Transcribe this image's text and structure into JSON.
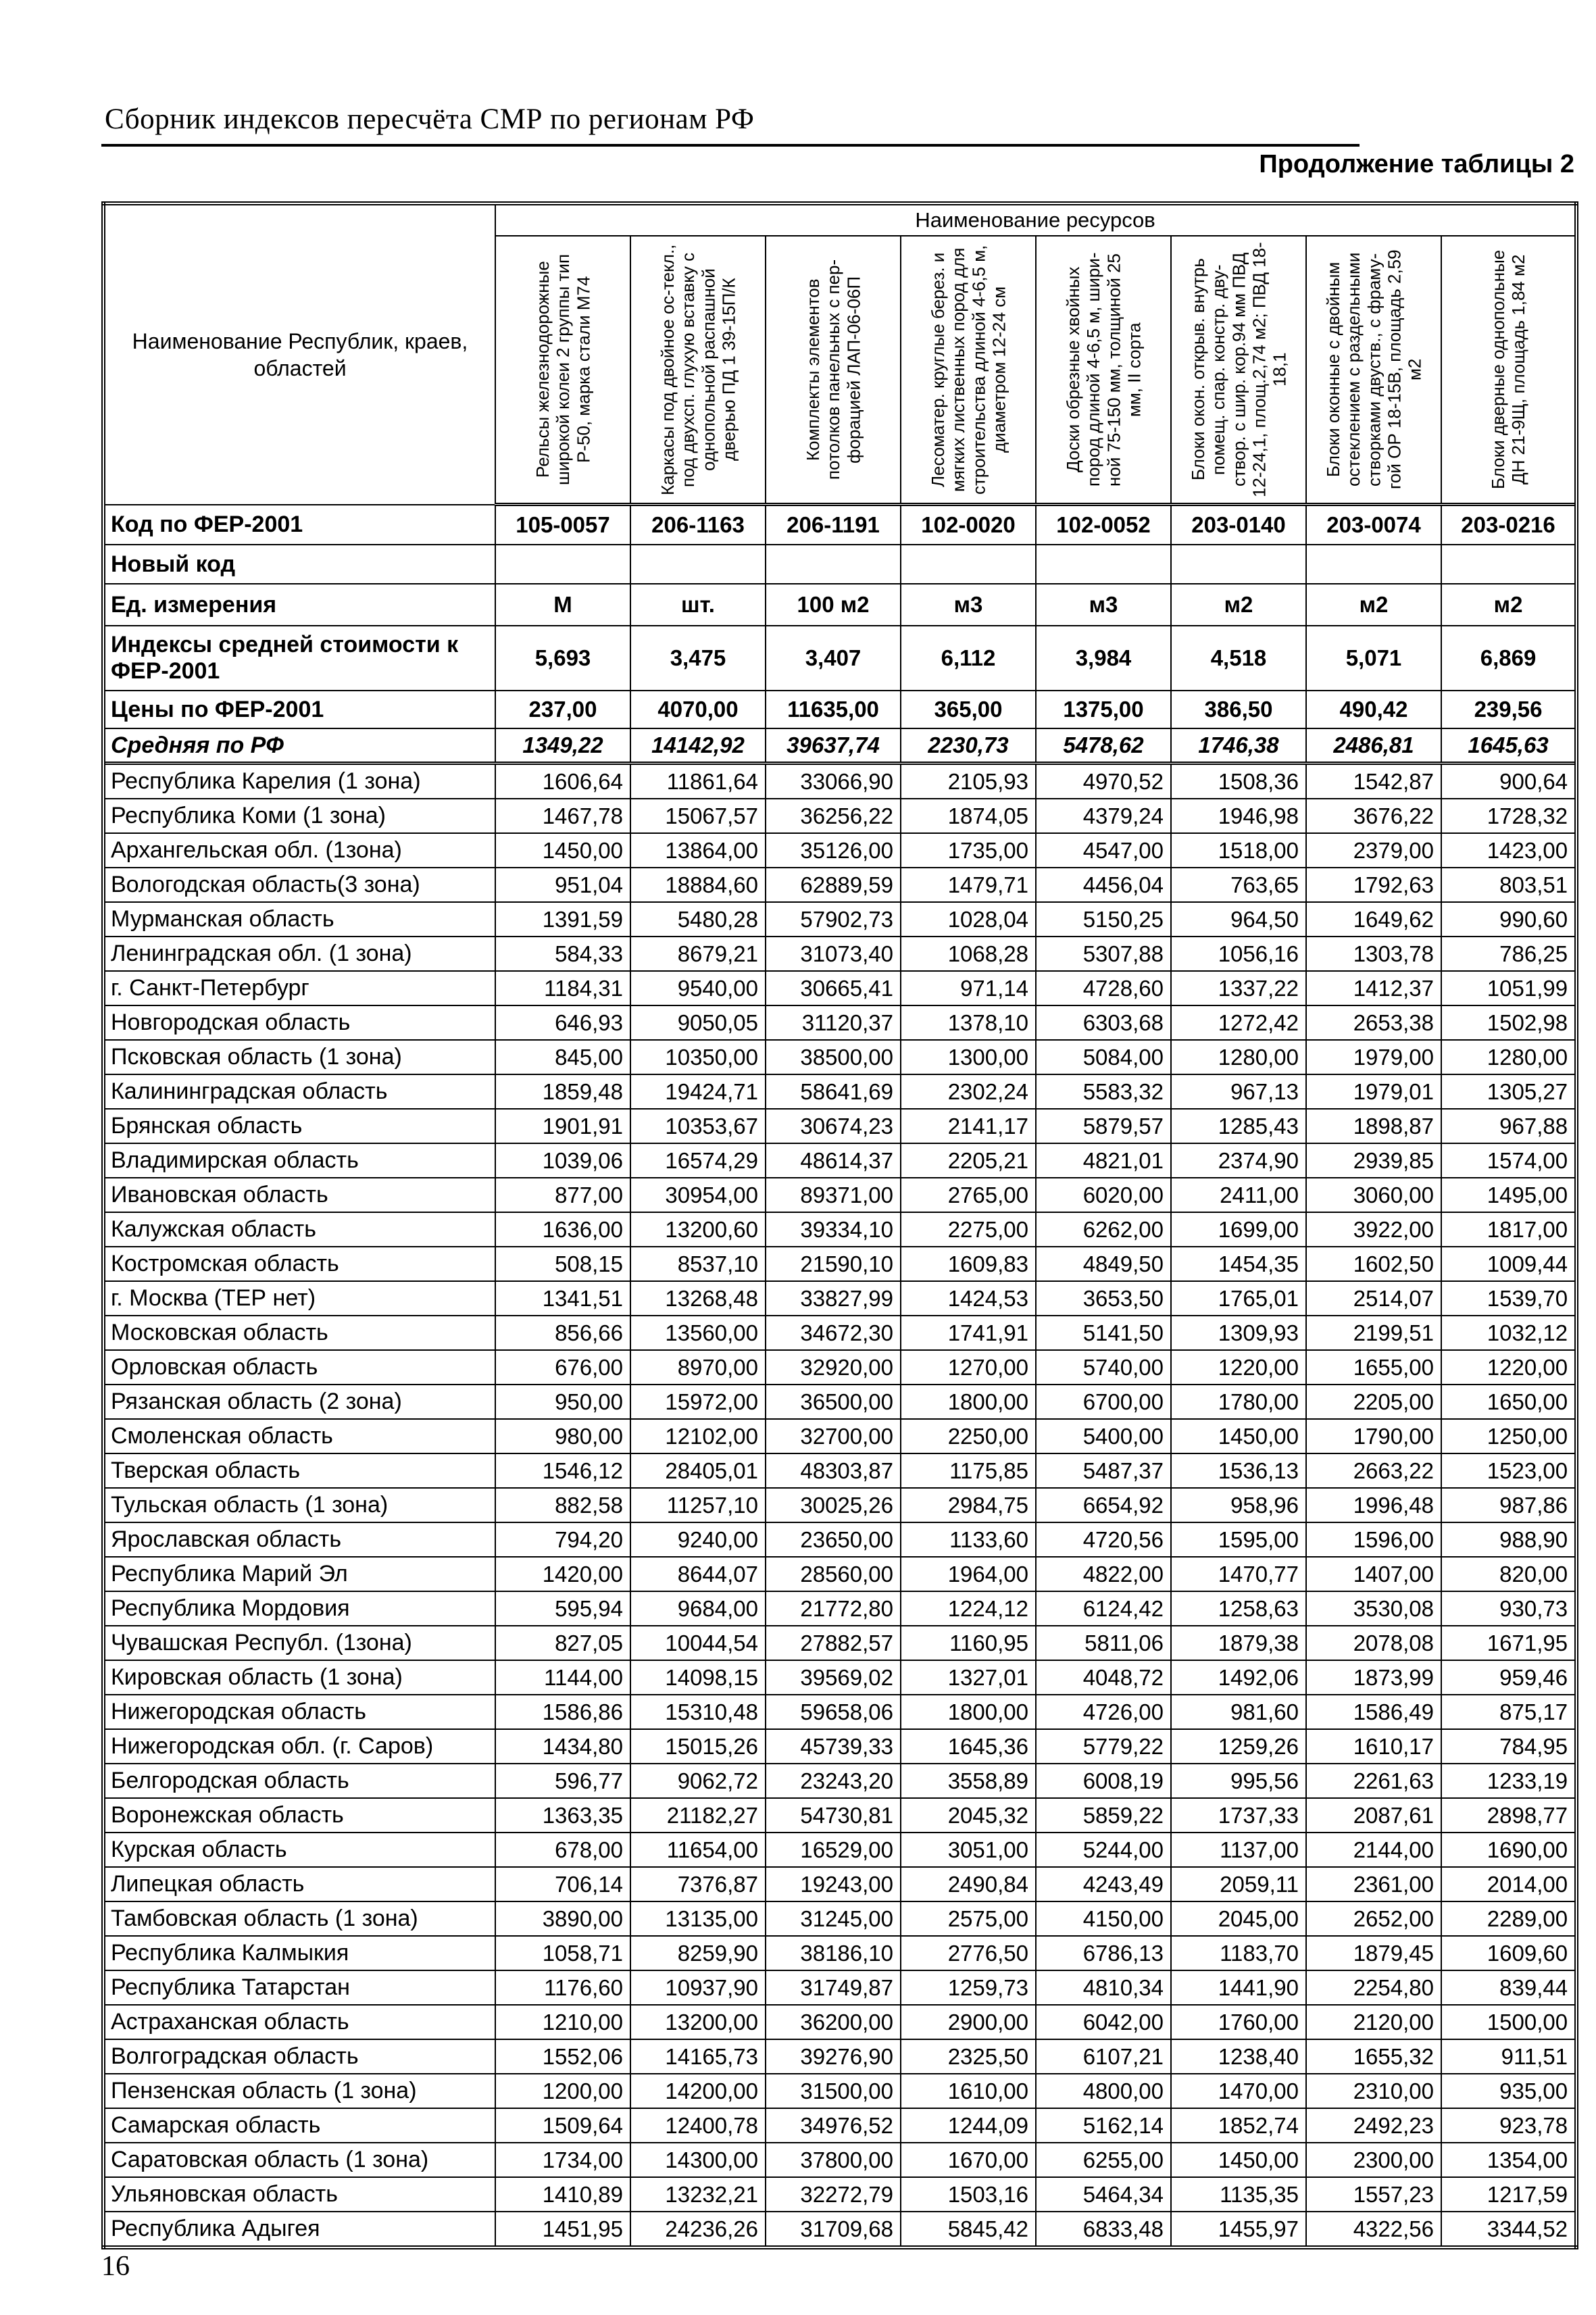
{
  "page": {
    "header_title": "Сборник индексов пересчёта СМР по регионам РФ",
    "table_caption": "Продолжение таблицы 2",
    "page_number": "16"
  },
  "table": {
    "corner_header": "Наименование Республик, краев, областей",
    "resources_header": "Наименование ресурсов",
    "resource_columns": [
      "Рельсы железнодорожные широкой колеи 2 группы тип Р-50, марка стали М74",
      "Каркасы под двойное ос-текл., под двухсп. глухую вставку с однопольной распашной дверью ПД 1 39-15П/К",
      "Комплекты элементов потолков панельных с пер-форацией ЛАП-06-06П",
      "Лесоматер. круглые берез. и мягких лиственных пород для строительства длиной 4-6,5 м, диаметром 12-24 см",
      "Доски обрезные хвойных пород длиной 4-6,5 м, шири-ной 75-150 мм, толщиной 25 мм, II сорта",
      "Блоки окон. открыв. внутрь помещ. спар. констр. дву-створ. с шир. кор.94 мм ПВД 12-24,1, площ.2,74 м2; ПВД 18-18,1",
      "Блоки оконные с двойным остеклением с раздельными створками двуств., с фраму-гой ОР 18-15В, площадь 2,59 м2",
      "Блоки дверные однопольные ДН 21-9Щ, площадь 1,84 м2"
    ],
    "meta_rows": [
      {
        "label": "Код по ФЕР-2001",
        "values": [
          "105-0057",
          "206-1163",
          "206-1191",
          "102-0020",
          "102-0052",
          "203-0140",
          "203-0074",
          "203-0216"
        ]
      },
      {
        "label": "Новый код",
        "values": [
          "",
          "",
          "",
          "",
          "",
          "",
          "",
          ""
        ]
      },
      {
        "label": "Ед. измерения",
        "values": [
          "М",
          "шт.",
          "100 м2",
          "м3",
          "м3",
          "м2",
          "м2",
          "м2"
        ]
      },
      {
        "label": "Индексы средней стоимости к ФЕР-2001",
        "values": [
          "5,693",
          "3,475",
          "3,407",
          "6,112",
          "3,984",
          "4,518",
          "5,071",
          "6,869"
        ]
      },
      {
        "label": "Цены по ФЕР-2001",
        "values": [
          "237,00",
          "4070,00",
          "11635,00",
          "365,00",
          "1375,00",
          "386,50",
          "490,42",
          "239,56"
        ]
      },
      {
        "label": "Средняя по РФ",
        "values": [
          "1349,22",
          "14142,92",
          "39637,74",
          "2230,73",
          "5478,62",
          "1746,38",
          "2486,81",
          "1645,63"
        ]
      }
    ],
    "region_rows": [
      {
        "label": "Республика Карелия (1 зона)",
        "values": [
          "1606,64",
          "11861,64",
          "33066,90",
          "2105,93",
          "4970,52",
          "1508,36",
          "1542,87",
          "900,64"
        ]
      },
      {
        "label": "Республика Коми (1 зона)",
        "values": [
          "1467,78",
          "15067,57",
          "36256,22",
          "1874,05",
          "4379,24",
          "1946,98",
          "3676,22",
          "1728,32"
        ]
      },
      {
        "label": "Архангельская обл. (1зона)",
        "values": [
          "1450,00",
          "13864,00",
          "35126,00",
          "1735,00",
          "4547,00",
          "1518,00",
          "2379,00",
          "1423,00"
        ]
      },
      {
        "label": "Вологодская область(3 зона)",
        "values": [
          "951,04",
          "18884,60",
          "62889,59",
          "1479,71",
          "4456,04",
          "763,65",
          "1792,63",
          "803,51"
        ]
      },
      {
        "label": "Мурманская область",
        "values": [
          "1391,59",
          "5480,28",
          "57902,73",
          "1028,04",
          "5150,25",
          "964,50",
          "1649,62",
          "990,60"
        ]
      },
      {
        "label": "Ленинградская обл. (1 зона)",
        "values": [
          "584,33",
          "8679,21",
          "31073,40",
          "1068,28",
          "5307,88",
          "1056,16",
          "1303,78",
          "786,25"
        ]
      },
      {
        "label": "г. Санкт-Петербург",
        "values": [
          "1184,31",
          "9540,00",
          "30665,41",
          "971,14",
          "4728,60",
          "1337,22",
          "1412,37",
          "1051,99"
        ]
      },
      {
        "label": "Новгородская область",
        "values": [
          "646,93",
          "9050,05",
          "31120,37",
          "1378,10",
          "6303,68",
          "1272,42",
          "2653,38",
          "1502,98"
        ]
      },
      {
        "label": "Псковская область (1 зона)",
        "values": [
          "845,00",
          "10350,00",
          "38500,00",
          "1300,00",
          "5084,00",
          "1280,00",
          "1979,00",
          "1280,00"
        ]
      },
      {
        "label": "Калининградская область",
        "values": [
          "1859,48",
          "19424,71",
          "58641,69",
          "2302,24",
          "5583,32",
          "967,13",
          "1979,01",
          "1305,27"
        ]
      },
      {
        "label": "Брянская область",
        "values": [
          "1901,91",
          "10353,67",
          "30674,23",
          "2141,17",
          "5879,57",
          "1285,43",
          "1898,87",
          "967,88"
        ]
      },
      {
        "label": "Владимирская область",
        "values": [
          "1039,06",
          "16574,29",
          "48614,37",
          "2205,21",
          "4821,01",
          "2374,90",
          "2939,85",
          "1574,00"
        ]
      },
      {
        "label": "Ивановская область",
        "values": [
          "877,00",
          "30954,00",
          "89371,00",
          "2765,00",
          "6020,00",
          "2411,00",
          "3060,00",
          "1495,00"
        ]
      },
      {
        "label": "Калужская область",
        "values": [
          "1636,00",
          "13200,60",
          "39334,10",
          "2275,00",
          "6262,00",
          "1699,00",
          "3922,00",
          "1817,00"
        ]
      },
      {
        "label": "Костромская область",
        "values": [
          "508,15",
          "8537,10",
          "21590,10",
          "1609,83",
          "4849,50",
          "1454,35",
          "1602,50",
          "1009,44"
        ]
      },
      {
        "label": "г. Москва (ТЕР нет)",
        "values": [
          "1341,51",
          "13268,48",
          "33827,99",
          "1424,53",
          "3653,50",
          "1765,01",
          "2514,07",
          "1539,70"
        ]
      },
      {
        "label": "Московская  область",
        "values": [
          "856,66",
          "13560,00",
          "34672,30",
          "1741,91",
          "5141,50",
          "1309,93",
          "2199,51",
          "1032,12"
        ]
      },
      {
        "label": "Орловская область",
        "values": [
          "676,00",
          "8970,00",
          "32920,00",
          "1270,00",
          "5740,00",
          "1220,00",
          "1655,00",
          "1220,00"
        ]
      },
      {
        "label": "Рязанская область (2 зона)",
        "values": [
          "950,00",
          "15972,00",
          "36500,00",
          "1800,00",
          "6700,00",
          "1780,00",
          "2205,00",
          "1650,00"
        ]
      },
      {
        "label": "Смоленская область",
        "values": [
          "980,00",
          "12102,00",
          "32700,00",
          "2250,00",
          "5400,00",
          "1450,00",
          "1790,00",
          "1250,00"
        ]
      },
      {
        "label": "Тверская область",
        "values": [
          "1546,12",
          "28405,01",
          "48303,87",
          "1175,85",
          "5487,37",
          "1536,13",
          "2663,22",
          "1523,00"
        ]
      },
      {
        "label": "Тульская область (1 зона)",
        "values": [
          "882,58",
          "11257,10",
          "30025,26",
          "2984,75",
          "6654,92",
          "958,96",
          "1996,48",
          "987,86"
        ]
      },
      {
        "label": "Ярославская область",
        "values": [
          "794,20",
          "9240,00",
          "23650,00",
          "1133,60",
          "4720,56",
          "1595,00",
          "1596,00",
          "988,90"
        ]
      },
      {
        "label": "Республика Марий Эл",
        "values": [
          "1420,00",
          "8644,07",
          "28560,00",
          "1964,00",
          "4822,00",
          "1470,77",
          "1407,00",
          "820,00"
        ]
      },
      {
        "label": "Республика Мордовия",
        "values": [
          "595,94",
          "9684,00",
          "21772,80",
          "1224,12",
          "6124,42",
          "1258,63",
          "3530,08",
          "930,73"
        ]
      },
      {
        "label": "Чувашская Республ. (1зона)",
        "values": [
          "827,05",
          "10044,54",
          "27882,57",
          "1160,95",
          "5811,06",
          "1879,38",
          "2078,08",
          "1671,95"
        ]
      },
      {
        "label": "Кировская область (1 зона)",
        "values": [
          "1144,00",
          "14098,15",
          "39569,02",
          "1327,01",
          "4048,72",
          "1492,06",
          "1873,99",
          "959,46"
        ]
      },
      {
        "label": "Нижегородская область",
        "values": [
          "1586,86",
          "15310,48",
          "59658,06",
          "1800,00",
          "4726,00",
          "981,60",
          "1586,49",
          "875,17"
        ]
      },
      {
        "label": "Нижегородская обл. (г. Саров)",
        "values": [
          "1434,80",
          "15015,26",
          "45739,33",
          "1645,36",
          "5779,22",
          "1259,26",
          "1610,17",
          "784,95"
        ]
      },
      {
        "label": "Белгородская область",
        "values": [
          "596,77",
          "9062,72",
          "23243,20",
          "3558,89",
          "6008,19",
          "995,56",
          "2261,63",
          "1233,19"
        ]
      },
      {
        "label": "Воронежская область",
        "values": [
          "1363,35",
          "21182,27",
          "54730,81",
          "2045,32",
          "5859,22",
          "1737,33",
          "2087,61",
          "2898,77"
        ]
      },
      {
        "label": "Курская область",
        "values": [
          "678,00",
          "11654,00",
          "16529,00",
          "3051,00",
          "5244,00",
          "1137,00",
          "2144,00",
          "1690,00"
        ]
      },
      {
        "label": "Липецкая область",
        "values": [
          "706,14",
          "7376,87",
          "19243,00",
          "2490,84",
          "4243,49",
          "2059,11",
          "2361,00",
          "2014,00"
        ]
      },
      {
        "label": "Тамбовская область (1 зона)",
        "values": [
          "3890,00",
          "13135,00",
          "31245,00",
          "2575,00",
          "4150,00",
          "2045,00",
          "2652,00",
          "2289,00"
        ]
      },
      {
        "label": "Республика Калмыкия",
        "values": [
          "1058,71",
          "8259,90",
          "38186,10",
          "2776,50",
          "6786,13",
          "1183,70",
          "1879,45",
          "1609,60"
        ]
      },
      {
        "label": "Республика Татарстан",
        "values": [
          "1176,60",
          "10937,90",
          "31749,87",
          "1259,73",
          "4810,34",
          "1441,90",
          "2254,80",
          "839,44"
        ]
      },
      {
        "label": "Астраханская область",
        "values": [
          "1210,00",
          "13200,00",
          "36200,00",
          "2900,00",
          "6042,00",
          "1760,00",
          "2120,00",
          "1500,00"
        ]
      },
      {
        "label": "Волгоградская область",
        "values": [
          "1552,06",
          "14165,73",
          "39276,90",
          "2325,50",
          "6107,21",
          "1238,40",
          "1655,32",
          "911,51"
        ]
      },
      {
        "label": "Пензенская область (1 зона)",
        "values": [
          "1200,00",
          "14200,00",
          "31500,00",
          "1610,00",
          "4800,00",
          "1470,00",
          "2310,00",
          "935,00"
        ]
      },
      {
        "label": "Самарская область",
        "values": [
          "1509,64",
          "12400,78",
          "34976,52",
          "1244,09",
          "5162,14",
          "1852,74",
          "2492,23",
          "923,78"
        ]
      },
      {
        "label": "Саратовская область (1 зона)",
        "values": [
          "1734,00",
          "14300,00",
          "37800,00",
          "1670,00",
          "6255,00",
          "1450,00",
          "2300,00",
          "1354,00"
        ]
      },
      {
        "label": "Ульяновская область",
        "values": [
          "1410,89",
          "13232,21",
          "32272,79",
          "1503,16",
          "5464,34",
          "1135,35",
          "1557,23",
          "1217,59"
        ]
      },
      {
        "label": "Республика Адыгея",
        "values": [
          "1451,95",
          "24236,26",
          "31709,68",
          "5845,42",
          "6833,48",
          "1455,97",
          "4322,56",
          "3344,52"
        ]
      }
    ]
  }
}
